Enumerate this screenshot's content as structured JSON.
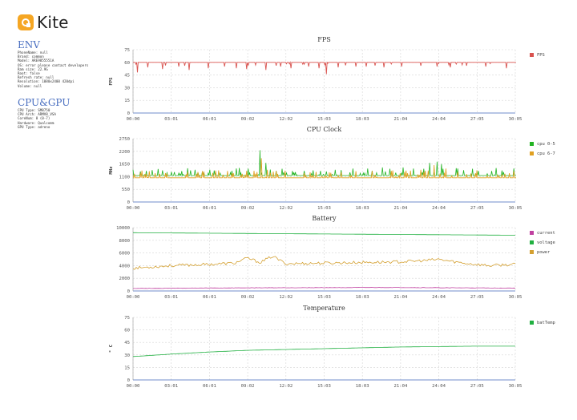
{
  "app": {
    "name": "Kite"
  },
  "env": {
    "title": "ENV",
    "lines": [
      "PhoneName: null",
      "Brand: common",
      "Model: ARE9855551A",
      "OS: error please contact developers",
      "Ram size: 22.9G",
      "Root: false",
      "Refresh rate: null",
      "Resolution: 1080x2400 420dpi",
      "Volume: null"
    ]
  },
  "cpugpu": {
    "title": "CPU&GPU",
    "lines": [
      "CPU Type: SM8750",
      "CPU Arch: ARMV8_VSA",
      "CoreNum: 8 (0-7)",
      "Hardware: Qualcomm",
      "GPU Type: adreno"
    ]
  },
  "colors": {
    "fps": "#d9534f",
    "cpu0_5": "#22b322",
    "cpu6_7": "#e0a020",
    "current": "#c040a0",
    "voltage": "#20b040",
    "power": "#d4a030",
    "batTemp": "#20b040",
    "grid": "#d4d4d4",
    "axis": "#4a6fc0"
  },
  "chart_data": [
    {
      "type": "line",
      "title": "FPS",
      "ylabel": "FPS",
      "ylim": [
        0,
        75
      ],
      "yticks": [
        "0",
        "15",
        "30",
        "45",
        "60",
        "75"
      ],
      "x_ticks": [
        "00:00",
        "03:01",
        "06:01",
        "09:02",
        "12:02",
        "15:03",
        "18:03",
        "21:04",
        "24:04",
        "27:05",
        "30:05"
      ],
      "x_range_min": [
        0,
        30.08
      ],
      "grid": true,
      "legend_position": "right",
      "series": [
        {
          "name": "FPS",
          "baseline": 60,
          "color": "#d9534f",
          "dips": [
            [
              0.3,
              48
            ],
            [
              1.2,
              54
            ],
            [
              2.3,
              52
            ],
            [
              3.6,
              55
            ],
            [
              4.4,
              51
            ],
            [
              5.9,
              53
            ],
            [
              7.2,
              55
            ],
            [
              8.1,
              53
            ],
            [
              9.0,
              52
            ],
            [
              10.5,
              51
            ],
            [
              11.6,
              55
            ],
            [
              12.4,
              53
            ],
            [
              13.8,
              55
            ],
            [
              14.6,
              53
            ],
            [
              15.2,
              46
            ],
            [
              16.1,
              54
            ],
            [
              17.5,
              55
            ],
            [
              18.4,
              55
            ],
            [
              19.7,
              54
            ],
            [
              21.1,
              55
            ],
            [
              22.6,
              56
            ],
            [
              23.9,
              55
            ],
            [
              25.0,
              54
            ],
            [
              26.3,
              56
            ],
            [
              27.8,
              55
            ],
            [
              29.4,
              53
            ]
          ]
        }
      ]
    },
    {
      "type": "line",
      "title": "CPU Clock",
      "ylabel": "MHz",
      "ylim": [
        0,
        2750
      ],
      "yticks": [
        "0",
        "550",
        "1100",
        "1650",
        "2200",
        "2750"
      ],
      "x_ticks": [
        "00:00",
        "03:01",
        "06:01",
        "09:02",
        "12:02",
        "15:03",
        "18:03",
        "21:04",
        "24:04",
        "27:05",
        "30:05"
      ],
      "x_range_min": [
        0,
        30.08
      ],
      "grid": true,
      "legend_position": "right",
      "series": [
        {
          "name": "cpu 0-5",
          "baseline": 1150,
          "color": "#22b322",
          "peaks": [
            [
              1.1,
              1350
            ],
            [
              3.3,
              1300
            ],
            [
              5.6,
              1280
            ],
            [
              7.8,
              1350
            ],
            [
              8.4,
              1480
            ],
            [
              10.0,
              2250
            ],
            [
              10.4,
              1700
            ],
            [
              11.3,
              1350
            ],
            [
              12.8,
              1300
            ],
            [
              14.7,
              1350
            ],
            [
              15.9,
              1400
            ],
            [
              17.3,
              1450
            ],
            [
              18.5,
              1450
            ],
            [
              19.6,
              1500
            ],
            [
              21.2,
              1500
            ],
            [
              22.1,
              1450
            ],
            [
              23.4,
              1700
            ],
            [
              23.9,
              1750
            ],
            [
              24.3,
              1650
            ],
            [
              25.5,
              1450
            ],
            [
              27.2,
              1350
            ],
            [
              29.1,
              1300
            ]
          ]
        },
        {
          "name": "cpu 6-7",
          "baseline": 1050,
          "color": "#e0a020",
          "peaks": [
            [
              1.8,
              1250
            ],
            [
              4.2,
              1200
            ],
            [
              8.9,
              1350
            ],
            [
              10.1,
              1900
            ],
            [
              10.6,
              1400
            ],
            [
              13.5,
              1250
            ],
            [
              16.4,
              1300
            ],
            [
              18.8,
              1350
            ],
            [
              20.3,
              1350
            ],
            [
              22.7,
              1400
            ],
            [
              23.7,
              1600
            ],
            [
              24.6,
              1450
            ],
            [
              26.9,
              1250
            ],
            [
              29.6,
              1250
            ]
          ]
        }
      ]
    },
    {
      "type": "line",
      "title": "Battery",
      "ylim": [
        0,
        10000
      ],
      "yticks": [
        "0",
        "2000",
        "4000",
        "6000",
        "8000",
        "10000"
      ],
      "x_ticks": [
        "00:00",
        "03:01",
        "06:01",
        "09:02",
        "12:02",
        "15:03",
        "18:03",
        "21:04",
        "24:04",
        "27:05",
        "30:05"
      ],
      "x_range_min": [
        0,
        30.08
      ],
      "grid": true,
      "legend_position": "right",
      "series": [
        {
          "name": "current",
          "color": "#c040a0",
          "x": [
            0,
            10,
            20,
            30.08
          ],
          "values": [
            400,
            500,
            550,
            450
          ]
        },
        {
          "name": "voltage",
          "color": "#20b040",
          "x": [
            0,
            30.08
          ],
          "values": [
            9200,
            8800
          ]
        },
        {
          "name": "power",
          "color": "#d4a030",
          "x": [
            0,
            3,
            6,
            8,
            9,
            10,
            11,
            12,
            15,
            18,
            21,
            23,
            24,
            26,
            28,
            30.08
          ],
          "values": [
            3600,
            4000,
            4200,
            4400,
            5200,
            4500,
            5500,
            4300,
            4400,
            4500,
            4600,
            4800,
            5000,
            4400,
            4000,
            4200
          ]
        }
      ]
    },
    {
      "type": "line",
      "title": "Temperature",
      "ylabel": "° C",
      "ylim": [
        0,
        75
      ],
      "yticks": [
        "0",
        "15",
        "30",
        "45",
        "60",
        "75"
      ],
      "x_ticks": [
        "00:00",
        "03:01",
        "06:01",
        "09:02",
        "12:02",
        "15:03",
        "18:03",
        "21:04",
        "24:04",
        "27:05",
        "30:05"
      ],
      "x_range_min": [
        0,
        30.08
      ],
      "grid": true,
      "legend_position": "right",
      "series": [
        {
          "name": "batTemp",
          "color": "#20b040",
          "x": [
            0,
            3,
            6,
            9,
            12,
            15,
            18,
            21,
            24,
            27,
            30.08
          ],
          "values": [
            28,
            31,
            33.5,
            35.5,
            36.5,
            37.5,
            38.5,
            39.5,
            40,
            40.5,
            40.5
          ]
        }
      ]
    }
  ]
}
